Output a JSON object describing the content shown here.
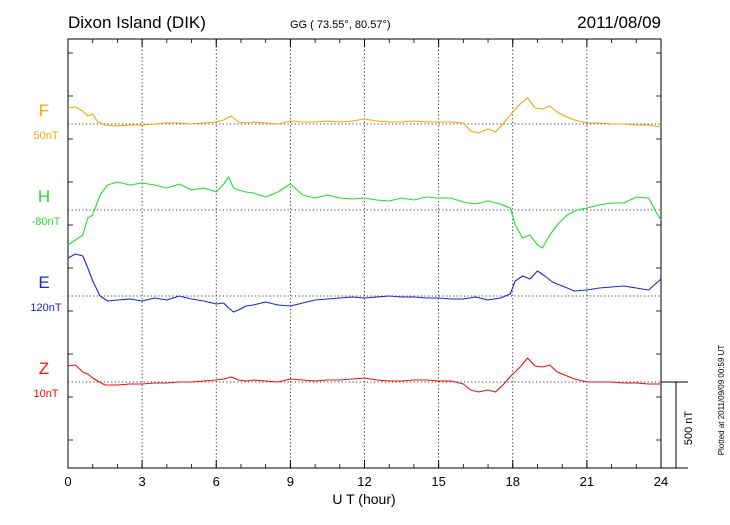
{
  "chart_data": {
    "type": "line",
    "title": "Dixon Island (DIK)",
    "subtitle": "GG ( 73.55°,  80.57°)",
    "date": "2011/08/09",
    "xlabel": "U T (hour)",
    "xlim": [
      0,
      24
    ],
    "xticks": [
      "0",
      "3",
      "6",
      "9",
      "12",
      "15",
      "18",
      "21",
      "24"
    ],
    "scale_bar_label": "500 nT",
    "plotted_note": "Plotted at 2011/09/09 00:59 UT",
    "grid": true,
    "series": [
      {
        "name": "F",
        "baseline_label": "50nT",
        "color": "#f0a800",
        "x": [
          0,
          0.3,
          0.6,
          0.8,
          1.0,
          1.2,
          1.5,
          2.0,
          2.5,
          3.0,
          3.5,
          4.0,
          4.5,
          5.0,
          5.5,
          6.0,
          6.3,
          6.6,
          6.9,
          7.2,
          7.5,
          8.0,
          8.5,
          9.0,
          9.5,
          10.0,
          10.5,
          11.0,
          11.5,
          12.0,
          12.5,
          13.0,
          13.5,
          14.0,
          14.5,
          15.0,
          15.5,
          16.0,
          16.3,
          16.6,
          17.0,
          17.3,
          17.6,
          18.0,
          18.3,
          18.6,
          18.9,
          19.2,
          19.5,
          19.8,
          20.1,
          20.5,
          21.0,
          21.5,
          22.0,
          22.5,
          23.0,
          23.5,
          24.0
        ],
        "y": [
          16,
          17,
          13,
          8,
          10,
          2,
          -1,
          -2,
          -1,
          -1,
          0,
          1,
          1,
          0,
          1,
          2,
          4,
          8,
          2,
          1,
          2,
          1,
          0,
          3,
          2,
          2,
          3,
          2,
          3,
          5,
          3,
          2,
          2,
          3,
          2,
          2,
          2,
          1,
          -7,
          -9,
          -5,
          -8,
          0,
          12,
          20,
          26,
          16,
          15,
          18,
          12,
          8,
          4,
          1,
          1,
          0,
          0,
          -1,
          -1,
          -3
        ]
      },
      {
        "name": "H",
        "baseline_label": "-80nT",
        "color": "#22dd33",
        "x": [
          0,
          0.3,
          0.6,
          0.8,
          1.0,
          1.3,
          1.6,
          2.0,
          2.5,
          3.0,
          3.5,
          4.0,
          4.5,
          5.0,
          5.5,
          6.0,
          6.3,
          6.5,
          6.7,
          6.9,
          7.2,
          7.5,
          8.0,
          8.5,
          9.0,
          9.5,
          10.0,
          10.5,
          11.0,
          11.5,
          12.0,
          12.5,
          13.0,
          13.5,
          14.0,
          14.5,
          15.0,
          15.5,
          16.0,
          16.5,
          17.0,
          17.5,
          17.9,
          18.1,
          18.4,
          18.7,
          19.0,
          19.2,
          19.5,
          19.8,
          20.2,
          20.6,
          21.0,
          21.5,
          22.0,
          22.5,
          23.0,
          23.5,
          23.8,
          24.0
        ],
        "y": [
          -35,
          -30,
          -25,
          -8,
          -5,
          15,
          25,
          28,
          25,
          27,
          25,
          22,
          26,
          20,
          22,
          18,
          26,
          33,
          22,
          20,
          18,
          17,
          13,
          18,
          26,
          15,
          12,
          15,
          12,
          11,
          12,
          10,
          9,
          12,
          10,
          13,
          12,
          12,
          8,
          6,
          9,
          6,
          2,
          -15,
          -28,
          -25,
          -35,
          -38,
          -25,
          -15,
          -5,
          0,
          2,
          5,
          7,
          7,
          13,
          12,
          -2,
          -10
        ]
      },
      {
        "name": "E",
        "baseline_label": "120nT",
        "color": "#1a28cc",
        "x": [
          0,
          0.3,
          0.6,
          0.8,
          1.0,
          1.3,
          1.6,
          2.0,
          2.5,
          3.0,
          3.5,
          4.0,
          4.5,
          5.0,
          5.5,
          6.0,
          6.3,
          6.5,
          6.7,
          6.9,
          7.2,
          7.5,
          8.0,
          8.5,
          9.0,
          9.5,
          10.0,
          10.5,
          11.0,
          11.5,
          12.0,
          12.5,
          13.0,
          13.5,
          14.0,
          14.5,
          15.0,
          15.5,
          16.0,
          16.5,
          17.0,
          17.5,
          17.9,
          18.1,
          18.4,
          18.7,
          19.0,
          19.3,
          19.6,
          20.0,
          20.5,
          21.0,
          21.5,
          22.0,
          22.5,
          23.0,
          23.5,
          24.0
        ],
        "y": [
          38,
          42,
          40,
          28,
          15,
          0,
          -5,
          -4,
          -3,
          -5,
          -2,
          -4,
          0,
          -3,
          -5,
          -8,
          -7,
          -12,
          -16,
          -14,
          -10,
          -9,
          -6,
          -9,
          -10,
          -7,
          -4,
          -3,
          -2,
          -1,
          -2,
          -1,
          0,
          -1,
          -1,
          -2,
          -2,
          -3,
          -3,
          -1,
          -4,
          -2,
          2,
          15,
          20,
          17,
          25,
          20,
          14,
          10,
          5,
          6,
          8,
          9,
          10,
          8,
          6,
          17
        ]
      },
      {
        "name": "Z",
        "baseline_label": "10nT",
        "color": "#ee1111",
        "x": [
          0,
          0.3,
          0.6,
          0.8,
          1.0,
          1.2,
          1.5,
          2.0,
          2.5,
          3.0,
          3.5,
          4.0,
          4.5,
          5.0,
          5.5,
          6.0,
          6.3,
          6.6,
          6.9,
          7.2,
          7.5,
          8.0,
          8.5,
          9.0,
          9.5,
          10.0,
          10.5,
          11.0,
          11.5,
          12.0,
          12.5,
          13.0,
          13.5,
          14.0,
          14.5,
          15.0,
          15.5,
          16.0,
          16.3,
          16.6,
          17.0,
          17.3,
          17.6,
          18.0,
          18.3,
          18.6,
          18.9,
          19.2,
          19.5,
          19.8,
          20.1,
          20.5,
          21.0,
          21.5,
          22.0,
          22.5,
          23.0,
          23.5,
          24.0
        ],
        "y": [
          16,
          17,
          10,
          8,
          4,
          1,
          -3,
          -3,
          -2,
          -2,
          -1,
          -1,
          0,
          0,
          1,
          2,
          3,
          5,
          2,
          1,
          2,
          1,
          0,
          3,
          2,
          1,
          2,
          2,
          3,
          4,
          2,
          1,
          1,
          2,
          2,
          1,
          1,
          -2,
          -8,
          -10,
          -8,
          -10,
          -3,
          8,
          15,
          24,
          16,
          15,
          17,
          10,
          7,
          3,
          0,
          0,
          0,
          -1,
          -1,
          -2,
          -2
        ]
      }
    ]
  }
}
